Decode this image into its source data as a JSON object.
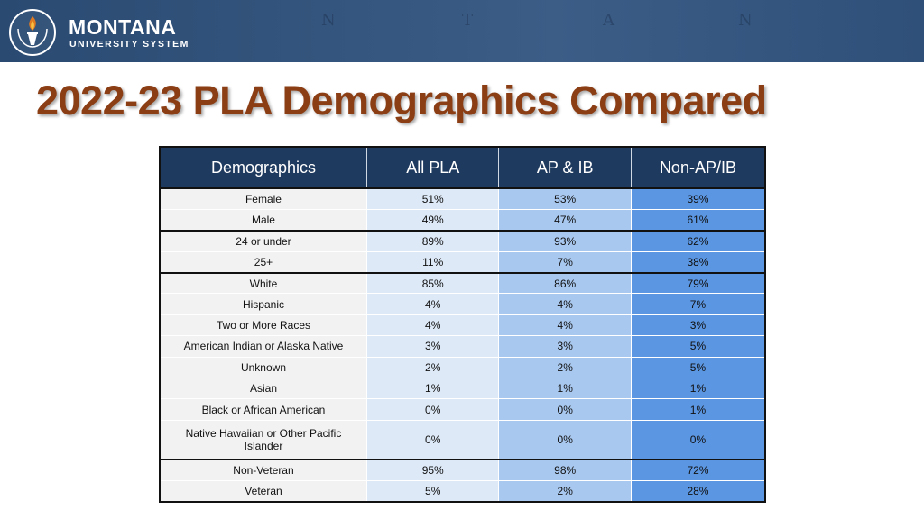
{
  "header": {
    "logo_name": "MONTANA",
    "logo_subtitle": "UNIVERSITY SYSTEM",
    "map_letters": [
      "N",
      "T",
      "A",
      "N"
    ],
    "logo_icon": "torch-icon"
  },
  "title": "2022-23 PLA Demographics Compared",
  "table": {
    "columns": [
      "Demographics",
      "All PLA",
      "AP & IB",
      "Non-AP/IB"
    ],
    "rows": [
      {
        "label": "Female",
        "values": [
          "51%",
          "53%",
          "39%"
        ]
      },
      {
        "label": "Male",
        "values": [
          "49%",
          "47%",
          "61%"
        ]
      },
      {
        "label": "24 or under",
        "values": [
          "89%",
          "93%",
          "62%"
        ]
      },
      {
        "label": "25+",
        "values": [
          "11%",
          "7%",
          "38%"
        ]
      },
      {
        "label": "White",
        "values": [
          "85%",
          "86%",
          "79%"
        ]
      },
      {
        "label": "Hispanic",
        "values": [
          "4%",
          "4%",
          "7%"
        ]
      },
      {
        "label": "Two or More Races",
        "values": [
          "4%",
          "4%",
          "3%"
        ]
      },
      {
        "label": "American Indian or Alaska Native",
        "values": [
          "3%",
          "3%",
          "5%"
        ]
      },
      {
        "label": "Unknown",
        "values": [
          "2%",
          "2%",
          "5%"
        ]
      },
      {
        "label": "Asian",
        "values": [
          "1%",
          "1%",
          "1%"
        ]
      },
      {
        "label": "Black or African American",
        "values": [
          "0%",
          "0%",
          "1%"
        ]
      },
      {
        "label": "Native Hawaiian or Other Pacific Islander",
        "values": [
          "0%",
          "0%",
          "0%"
        ]
      },
      {
        "label": "Non-Veteran",
        "values": [
          "95%",
          "98%",
          "72%"
        ]
      },
      {
        "label": "Veteran",
        "values": [
          "5%",
          "2%",
          "28%"
        ]
      }
    ]
  },
  "colors": {
    "title": "#8b3d14",
    "header_bg": "#1f3a5f",
    "col_demographics": "#f2f2f2",
    "col_all_pla": "#dde9f7",
    "col_ap_ib": "#a9c8ef",
    "col_non_ap_ib": "#5b96e2"
  }
}
